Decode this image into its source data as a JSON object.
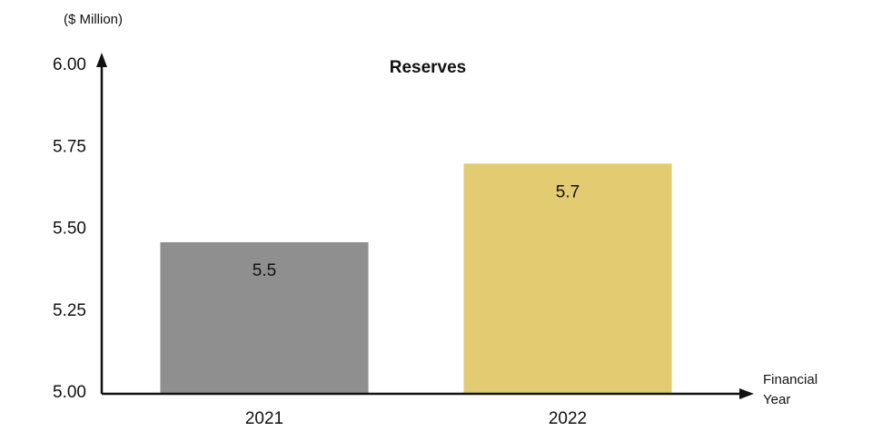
{
  "chart_data": {
    "type": "bar",
    "title": "Reserves",
    "y_unit_label": "($ Million)",
    "x_label": "Financial Year",
    "categories": [
      "2021",
      "2022"
    ],
    "values": [
      5.46,
      5.7
    ],
    "value_labels": [
      "5.5",
      "5.7"
    ],
    "colors": [
      "#8f8f8f",
      "#e3cb72"
    ],
    "ylim": [
      5,
      6
    ],
    "yticks": [
      {
        "value": 5,
        "label": "5.00"
      },
      {
        "value": 5.25,
        "label": "5.25"
      },
      {
        "value": 5.5,
        "label": "5.50"
      },
      {
        "value": 5.75,
        "label": "5.75"
      },
      {
        "value": 6,
        "label": "6.00"
      }
    ]
  }
}
